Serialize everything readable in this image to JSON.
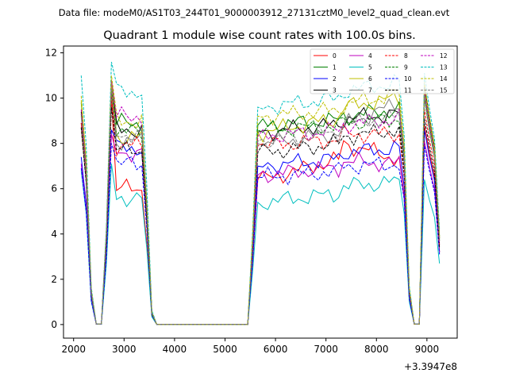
{
  "suptitle": "Data file: modeM0/AS1T03_244T01_9000003912_27131cztM0_level2_quad_clean.evt",
  "chart_data": {
    "type": "line",
    "title": "Quadrant 1 module wise count rates with 100.0s bins.",
    "xlabel": "",
    "ylabel": "",
    "x_offset_label": "+3.3947e8",
    "xlim": [
      1800,
      9600
    ],
    "ylim": [
      -0.6,
      12.3
    ],
    "xticks": [
      2000,
      3000,
      4000,
      5000,
      6000,
      7000,
      8000,
      9000
    ],
    "yticks": [
      0,
      2,
      4,
      6,
      8,
      10,
      12
    ],
    "legend": {
      "position": "top-right",
      "columns": 4
    },
    "x": [
      2150,
      2250,
      2350,
      2450,
      2550,
      2650,
      2750,
      2850,
      2950,
      3050,
      3150,
      3250,
      3350,
      3450,
      3550,
      3650,
      3750,
      3850,
      3950,
      4050,
      4150,
      4250,
      4350,
      4450,
      4550,
      4650,
      4750,
      4850,
      4950,
      5050,
      5150,
      5250,
      5350,
      5450,
      5550,
      5650,
      5750,
      5850,
      5950,
      6050,
      6150,
      6250,
      6350,
      6450,
      6550,
      6650,
      6750,
      6850,
      6950,
      7050,
      7150,
      7250,
      7350,
      7450,
      7550,
      7650,
      7750,
      7850,
      7950,
      8050,
      8150,
      8250,
      8350,
      8450,
      8550,
      8650,
      8750,
      8850,
      8950,
      9050,
      9150,
      9250
    ],
    "series": [
      {
        "name": "0",
        "color": "#ff0000",
        "dash": "solid",
        "peaks": [
          8.9,
          10.0,
          6.0,
          6.4,
          8.0,
          7.3,
          8.8,
          3.2
        ]
      },
      {
        "name": "1",
        "color": "#008000",
        "dash": "solid",
        "peaks": [
          9.8,
          10.8,
          8.9,
          8.8,
          9.2,
          9.5,
          10.2,
          3.9
        ]
      },
      {
        "name": "2",
        "color": "#0000ff",
        "dash": "solid",
        "peaks": [
          7.4,
          8.6,
          7.8,
          7.0,
          7.6,
          7.8,
          8.6,
          3.2
        ]
      },
      {
        "name": "3",
        "color": "#000000",
        "dash": "solid",
        "peaks": [
          9.4,
          10.6,
          8.6,
          8.5,
          9.1,
          9.3,
          10.6,
          3.8
        ]
      },
      {
        "name": "4",
        "color": "#bf00bf",
        "dash": "solid",
        "peaks": [
          7.1,
          8.4,
          7.6,
          6.6,
          7.2,
          7.1,
          8.1,
          3.2
        ]
      },
      {
        "name": "5",
        "color": "#00bfbf",
        "dash": "solid",
        "peaks": [
          6.8,
          7.1,
          5.6,
          5.4,
          6.1,
          6.3,
          6.4,
          2.7
        ]
      },
      {
        "name": "6",
        "color": "#bfbf00",
        "dash": "solid",
        "peaks": [
          9.9,
          10.7,
          8.3,
          8.5,
          9.6,
          10.0,
          10.4,
          3.8
        ]
      },
      {
        "name": "7",
        "color": "#808080",
        "dash": "solid",
        "peaks": [
          8.7,
          10.2,
          8.1,
          8.0,
          8.8,
          9.8,
          10.0,
          3.5
        ]
      },
      {
        "name": "8",
        "color": "#ff0000",
        "dash": "dashed",
        "peaks": [
          8.9,
          10.3,
          7.9,
          7.9,
          8.4,
          8.4,
          9.5,
          3.5
        ]
      },
      {
        "name": "9",
        "color": "#008000",
        "dash": "dashed",
        "peaks": [
          9.3,
          10.4,
          8.5,
          8.6,
          8.9,
          9.1,
          10.0,
          3.7
        ]
      },
      {
        "name": "10",
        "color": "#0000ff",
        "dash": "dashed",
        "peaks": [
          6.9,
          8.0,
          7.1,
          6.5,
          7.0,
          7.1,
          7.9,
          3.1
        ]
      },
      {
        "name": "11",
        "color": "#000000",
        "dash": "dashed",
        "peaks": [
          8.7,
          9.6,
          7.7,
          7.6,
          8.3,
          8.6,
          9.1,
          3.4
        ]
      },
      {
        "name": "12",
        "color": "#bf00bf",
        "dash": "dashed",
        "peaks": [
          9.5,
          10.8,
          9.2,
          8.3,
          8.8,
          9.1,
          10.3,
          3.6
        ]
      },
      {
        "name": "13",
        "color": "#00bfbf",
        "dash": "dashed",
        "peaks": [
          11.0,
          11.6,
          10.3,
          9.6,
          10.3,
          10.7,
          11.1,
          4.2
        ]
      },
      {
        "name": "14",
        "color": "#bfbf00",
        "dash": "dashed",
        "peaks": [
          10.1,
          11.0,
          9.0,
          9.2,
          9.7,
          10.2,
          10.7,
          3.9
        ]
      },
      {
        "name": "15",
        "color": "#808080",
        "dash": "dashed",
        "peaks": [
          9.2,
          10.4,
          8.4,
          8.1,
          8.8,
          9.2,
          10.1,
          3.7
        ]
      }
    ]
  }
}
